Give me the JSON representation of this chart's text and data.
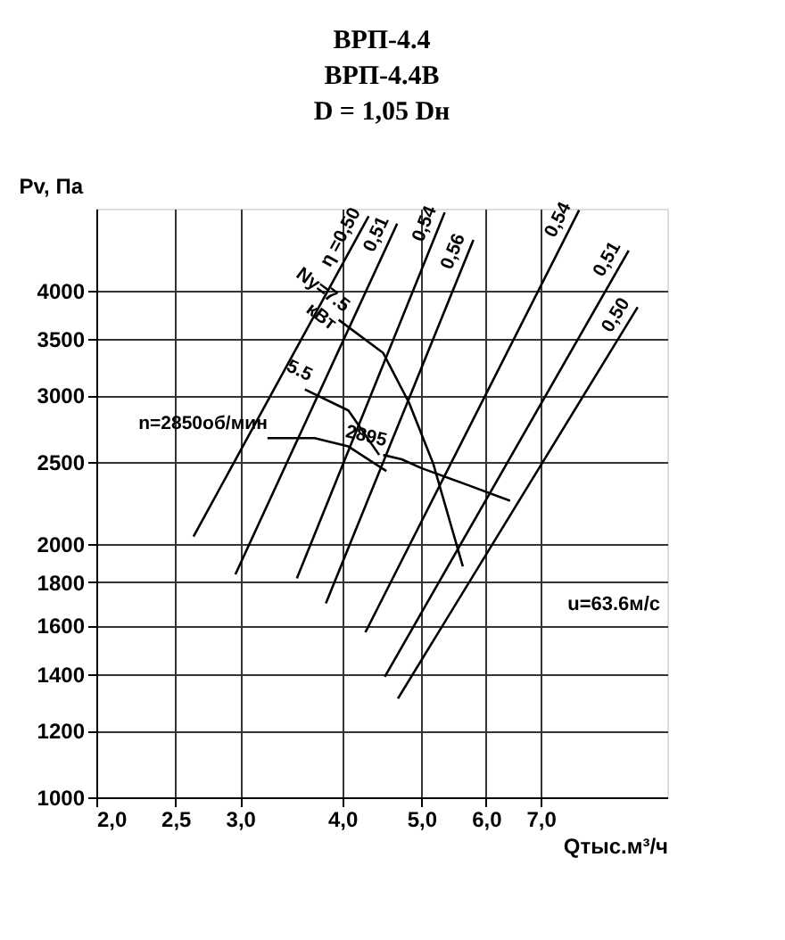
{
  "chart_data": {
    "type": "line",
    "title": [
      "ВРП-4.4",
      "ВРП-4.4В",
      "D = 1,05 Dн"
    ],
    "xlabel": "Qтыс.м³/ч",
    "ylabel": "Pv, Па",
    "log": "xy",
    "grid": true,
    "xlim": [
      2,
      10
    ],
    "ylim": [
      1000,
      5000
    ],
    "xticks": [
      {
        "value": 2,
        "label": "2,0"
      },
      {
        "value": 2.5,
        "label": "2,5"
      },
      {
        "value": 3,
        "label": "3,0"
      },
      {
        "value": 4,
        "label": "4,0"
      },
      {
        "value": 5,
        "label": "5,0"
      },
      {
        "value": 6,
        "label": "6,0"
      },
      {
        "value": 7,
        "label": "7,0"
      }
    ],
    "yticks": [
      1000,
      1200,
      1400,
      1600,
      1800,
      2000,
      2500,
      3000,
      3500,
      4000
    ],
    "series": [
      {
        "name": "n=2850об/мин",
        "color": "#000000",
        "x": [
          3.24,
          3.7,
          4.07,
          4.33,
          4.53
        ],
        "values": [
          2670,
          2670,
          2610,
          2510,
          2440
        ]
      },
      {
        "name": "2895",
        "color": "#000000",
        "x": [
          4.49,
          4.73,
          5.0,
          5.69,
          6.42
        ],
        "values": [
          2550,
          2520,
          2460,
          2350,
          2250
        ]
      },
      {
        "name": "Ny=7.5\nкВт",
        "color": "#000000",
        "x": [
          3.96,
          4.49,
          4.83,
          5.17,
          5.62
        ],
        "values": [
          3690,
          3370,
          2940,
          2490,
          1880
        ]
      },
      {
        "name": "5.5",
        "color": "#000000",
        "x": [
          3.6,
          4.07,
          4.44
        ],
        "values": [
          3050,
          2880,
          2550
        ]
      },
      {
        "name": "η =0,50",
        "color": "#000000",
        "x": [
          4.31,
          2.63
        ],
        "values": [
          4900,
          2040
        ]
      },
      {
        "name": "0,51",
        "color": "#000000",
        "x": [
          4.67,
          2.96
        ],
        "values": [
          4800,
          1840
        ]
      },
      {
        "name": "0,54",
        "color": "#000000",
        "x": [
          5.34,
          3.52
        ],
        "values": [
          4950,
          1820
        ]
      },
      {
        "name": "0,56",
        "color": "#000000",
        "x": [
          5.79,
          3.82
        ],
        "values": [
          4590,
          1700
        ]
      },
      {
        "name": "0,54",
        "color": "#000000",
        "x": [
          7.8,
          4.27
        ],
        "values": [
          4980,
          1570
        ]
      },
      {
        "name": "0,51",
        "color": "#000000",
        "x": [
          8.97,
          4.51
        ],
        "values": [
          4460,
          1390
        ]
      },
      {
        "name": "0,50",
        "color": "#000000",
        "x": [
          9.2,
          4.68
        ],
        "values": [
          3820,
          1310
        ]
      }
    ],
    "annotations": [
      "u=63.6м/с"
    ]
  }
}
